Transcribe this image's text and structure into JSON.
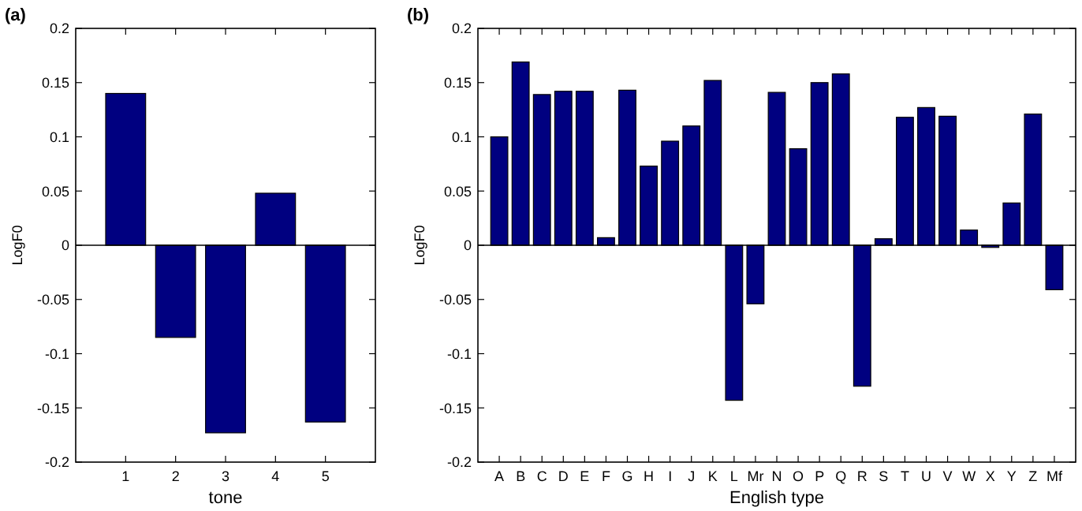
{
  "chart_data": [
    {
      "type": "bar",
      "title": "(a)",
      "xlabel": "tone",
      "ylabel": "LogF0",
      "x": [
        1,
        2,
        3,
        4,
        5
      ],
      "xlim": [
        0,
        6
      ],
      "xticks": [
        1,
        2,
        3,
        4,
        5
      ],
      "values": [
        0.14,
        -0.085,
        -0.173,
        0.048,
        -0.163
      ],
      "color": "#000080",
      "ylim": [
        -0.2,
        0.2
      ],
      "yticks": [
        -0.2,
        -0.15,
        -0.1,
        -0.05,
        0,
        0.05,
        0.1,
        0.15,
        0.2
      ]
    },
    {
      "type": "bar",
      "title": "(b)",
      "xlabel": "English type",
      "ylabel": "LogF0",
      "categories": [
        "A",
        "B",
        "C",
        "D",
        "E",
        "F",
        "G",
        "H",
        "I",
        "J",
        "K",
        "L",
        "Mr",
        "N",
        "O",
        "P",
        "Q",
        "R",
        "S",
        "T",
        "U",
        "V",
        "W",
        "X",
        "Y",
        "Z",
        "Mf"
      ],
      "values": [
        0.1,
        0.169,
        0.139,
        0.142,
        0.142,
        0.007,
        0.143,
        0.073,
        0.096,
        0.11,
        0.152,
        -0.143,
        -0.054,
        0.141,
        0.089,
        0.15,
        0.158,
        -0.13,
        0.006,
        0.118,
        0.127,
        0.119,
        0.014,
        -0.002,
        0.039,
        0.121,
        -0.041
      ],
      "color": "#000080",
      "ylim": [
        -0.2,
        0.2
      ],
      "yticks": [
        -0.2,
        -0.15,
        -0.1,
        -0.05,
        0,
        0.05,
        0.1,
        0.15,
        0.2
      ]
    }
  ]
}
